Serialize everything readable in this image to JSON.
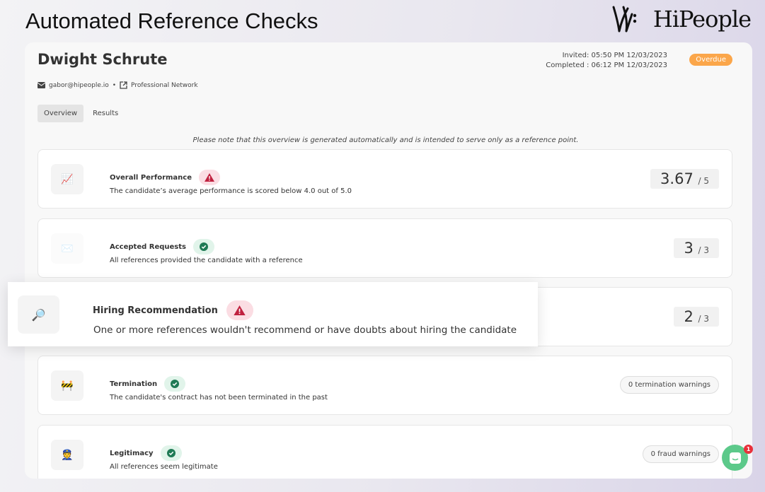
{
  "page_title": "Automated Reference Checks",
  "brand": {
    "name": "HiPeople"
  },
  "candidate": {
    "name": "Dwight Schrute",
    "email": "gabor@hipeople.io",
    "source": "Professional Network",
    "invited": "Invited: 05:50 PM 12/03/2023",
    "completed": "Completed : 06:12 PM 12/03/2023",
    "status": "Overdue",
    "status_color": "#fba64a"
  },
  "tabs": [
    {
      "label": "Overview",
      "active": true
    },
    {
      "label": "Results",
      "active": false
    }
  ],
  "note": "Please note that this overview is generated automatically and is intended to serve only as a reference point.",
  "checks": [
    {
      "title": "Overall Performance",
      "status": "warning",
      "icon": "chart-increasing-icon",
      "description": "The candidate’s average performance is scored below 4.0 out of 5.0",
      "score": "3.67",
      "max": "/ 5"
    },
    {
      "title": "Accepted Requests",
      "status": "ok",
      "icon": "envelope-icon",
      "description": "All references provided the candidate with a reference",
      "score": "3",
      "max": "/ 3"
    },
    {
      "title": "Hiring Recommendation",
      "status": "warning",
      "icon": "magnifier-icon",
      "description": "One or more references wouldn't recommend or have doubts about hiring the candidate",
      "score": "2",
      "max": "/ 3"
    },
    {
      "title": "Termination",
      "status": "ok",
      "icon": "construction-barrier-icon",
      "description": "The candidate's contract has not been terminated in the past",
      "pill": "0 termination warnings"
    },
    {
      "title": "Legitimacy",
      "status": "ok",
      "icon": "police-officer-icon",
      "description": "All references seem legitimate",
      "pill": "0 fraud warnings"
    }
  ],
  "chat": {
    "unread": "1"
  },
  "colors": {
    "warning": "#c0213f",
    "ok": "#1f7a55",
    "chat": "#5cc98a"
  }
}
